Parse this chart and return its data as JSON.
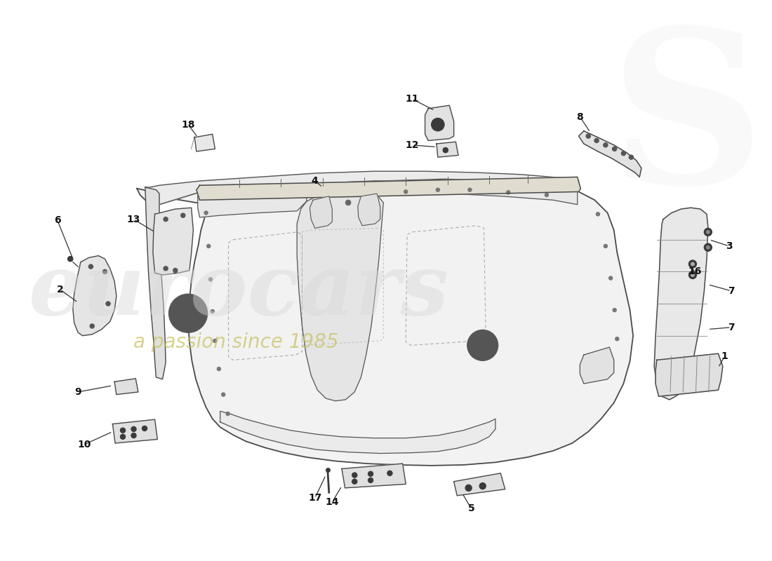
{
  "bg_color": "#ffffff",
  "line_color": "#3a3a3a",
  "fill_main": "#f0f0f0",
  "fill_mid": "#e8e8e8",
  "fill_light": "#f5f5f5",
  "watermark1": "eurocars",
  "watermark2": "a passion since 1985",
  "wm1_color": "#d8d8d8",
  "wm2_color": "#c8c060",
  "labels": [
    [
      "1",
      1060,
      490
    ],
    [
      "2",
      32,
      385
    ],
    [
      "3",
      1072,
      318
    ],
    [
      "4",
      425,
      222
    ],
    [
      "5",
      668,
      728
    ],
    [
      "6",
      28,
      280
    ],
    [
      "7",
      1072,
      388
    ],
    [
      "7",
      1072,
      445
    ],
    [
      "8",
      840,
      120
    ],
    [
      "9",
      60,
      548
    ],
    [
      "10",
      70,
      628
    ],
    [
      "11",
      583,
      92
    ],
    [
      "12",
      583,
      162
    ],
    [
      "13",
      148,
      278
    ],
    [
      "14",
      458,
      718
    ],
    [
      "16",
      1018,
      358
    ],
    [
      "17",
      430,
      712
    ],
    [
      "18",
      232,
      132
    ]
  ]
}
